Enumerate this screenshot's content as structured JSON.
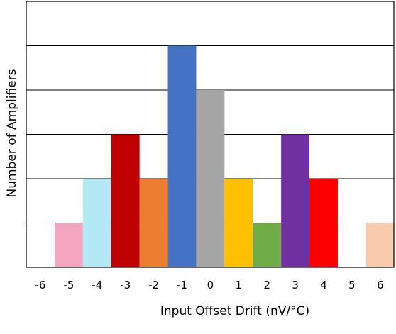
{
  "chart_data": {
    "type": "bar",
    "title": "",
    "xlabel": "Input Offset Drift (nV/°C)",
    "ylabel": "Number of Amplifiers",
    "tick_labels": [
      "-6",
      "-5",
      "-4",
      "-3",
      "-2",
      "-1",
      "0",
      "1",
      "2",
      "3",
      "4",
      "5",
      "6"
    ],
    "categories": [
      -6,
      -5,
      -4,
      -3,
      -2,
      -1,
      0,
      1,
      2,
      3,
      4,
      5,
      6
    ],
    "values": [
      0,
      1,
      2,
      3,
      2,
      5,
      4,
      2,
      1,
      3,
      2,
      0,
      1
    ],
    "colors": [
      "#ffffff",
      "#f4a6c0",
      "#b3e8f5",
      "#c00000",
      "#ed7d31",
      "#4472c4",
      "#a5a5a5",
      "#ffc000",
      "#70ad47",
      "#7030a0",
      "#ff0000",
      "#ffffff",
      "#f8cbad"
    ],
    "ylim": [
      0,
      6
    ],
    "grid": true,
    "legend": "none"
  }
}
